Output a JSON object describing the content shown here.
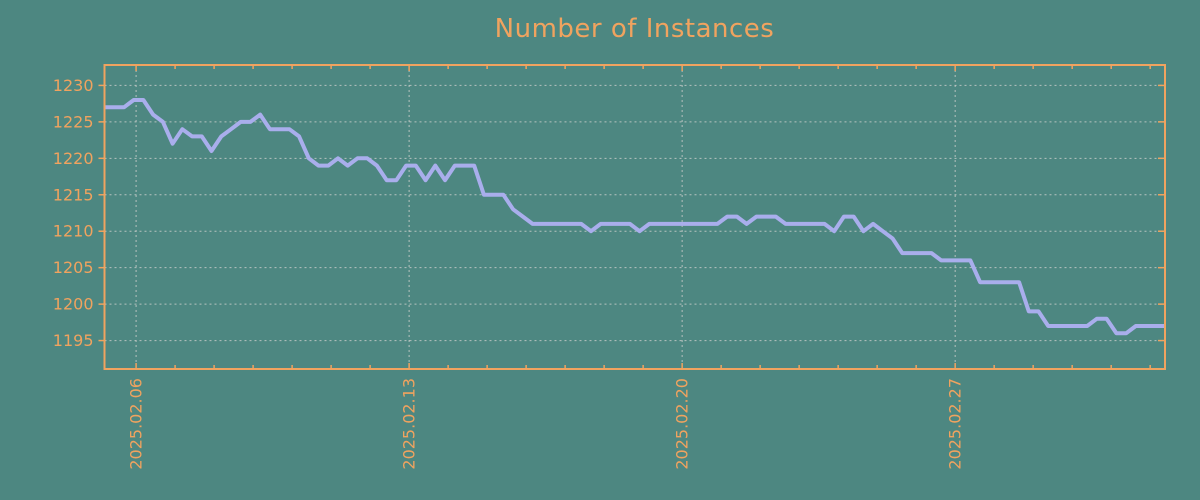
{
  "chart_data": {
    "type": "line",
    "title": "Number of Instances",
    "x_ticks": [
      {
        "label": "2025.02.06",
        "day": 0
      },
      {
        "label": "2025.02.13",
        "day": 7
      },
      {
        "label": "2025.02.20",
        "day": 14
      },
      {
        "label": "2025.02.27",
        "day": 21
      }
    ],
    "x_minor_tick_step_days": 1,
    "x_range_days": [
      -0.81,
      26.38
    ],
    "y_ticks": [
      1230,
      1225,
      1220,
      1215,
      1210,
      1205,
      1200,
      1195
    ],
    "y_range": [
      1191.1,
      1232.8
    ],
    "grid": true,
    "legend": "none",
    "points_per_day": 4,
    "series": [
      {
        "name": "instances",
        "values": [
          1227,
          1227,
          1227,
          1228,
          1228,
          1226,
          1225,
          1222,
          1224,
          1223,
          1223,
          1221,
          1223,
          1224,
          1225,
          1225,
          1226,
          1224,
          1224,
          1224,
          1223,
          1220,
          1219,
          1219,
          1220,
          1219,
          1220,
          1220,
          1219,
          1217,
          1217,
          1219,
          1219,
          1217,
          1219,
          1217,
          1219,
          1219,
          1219,
          1215,
          1215,
          1215,
          1213,
          1212,
          1211,
          1211,
          1211,
          1211,
          1211,
          1211,
          1210,
          1211,
          1211,
          1211,
          1211,
          1210,
          1211,
          1211,
          1211,
          1211,
          1211,
          1211,
          1211,
          1211,
          1212,
          1212,
          1211,
          1212,
          1212,
          1212,
          1211,
          1211,
          1211,
          1211,
          1211,
          1210,
          1212,
          1212,
          1210,
          1211,
          1210,
          1209,
          1207,
          1207,
          1207,
          1207,
          1206,
          1206,
          1206,
          1206,
          1203,
          1203,
          1203,
          1203,
          1203,
          1199,
          1199,
          1197,
          1197,
          1197,
          1197,
          1197,
          1198,
          1198,
          1196,
          1196,
          1197,
          1197,
          1197,
          1197
        ]
      }
    ],
    "colors": {
      "background": "#4d8781",
      "axis": "#f0a35f",
      "title": "#f0a35f",
      "tick_labels": "#f0a35f",
      "line": "#a9aeec",
      "grid": "#c2c9c6"
    }
  }
}
